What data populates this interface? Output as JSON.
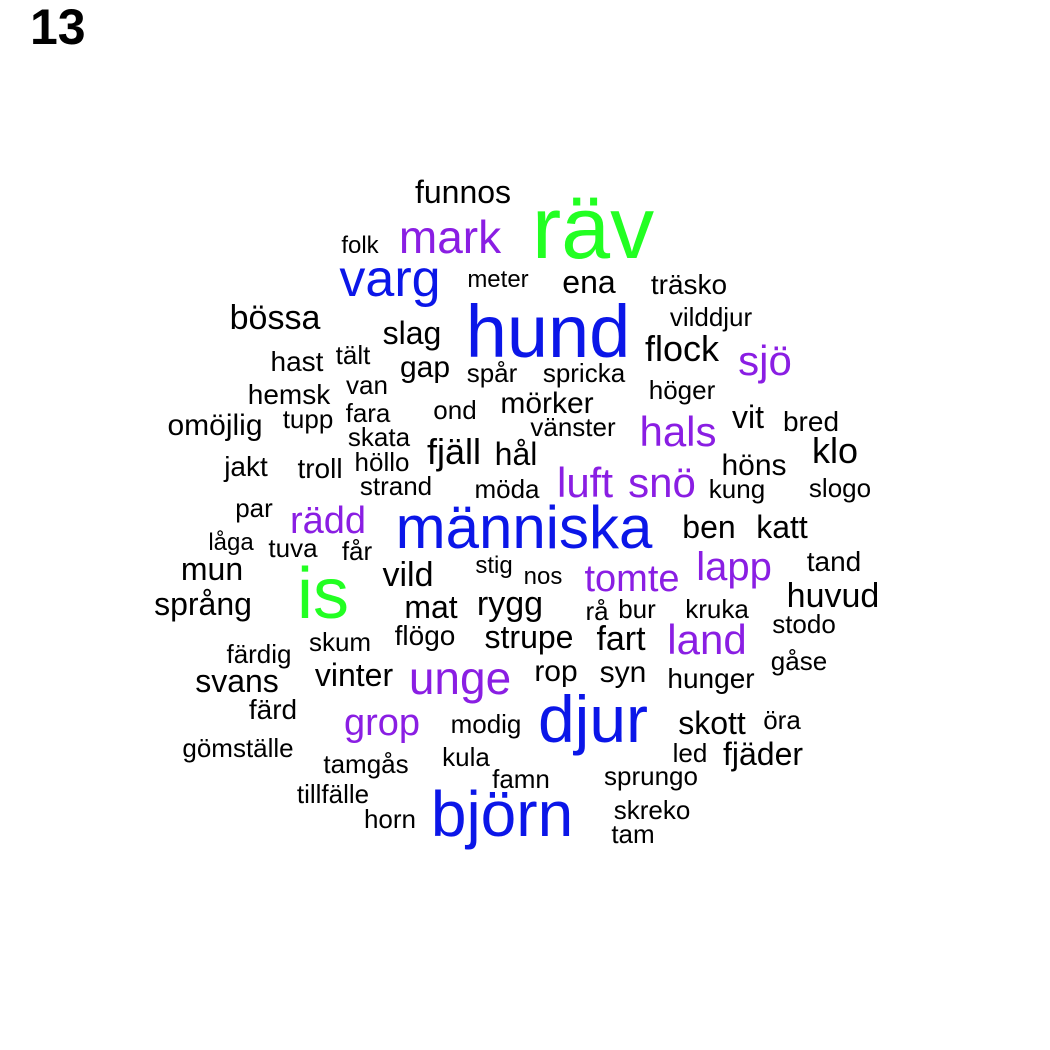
{
  "page_number": "13",
  "colors": {
    "green": "#22ff22",
    "blue": "#0b16e8",
    "purple": "#8a1ee3",
    "black": "#000000"
  },
  "words": [
    {
      "text": "räv",
      "tier": "green"
    },
    {
      "text": "is",
      "tier": "green"
    },
    {
      "text": "hund",
      "tier": "blue"
    },
    {
      "text": "människa",
      "tier": "blue"
    },
    {
      "text": "djur",
      "tier": "blue"
    },
    {
      "text": "björn",
      "tier": "blue"
    },
    {
      "text": "varg",
      "tier": "blue"
    },
    {
      "text": "mark",
      "tier": "purple"
    },
    {
      "text": "sjö",
      "tier": "purple"
    },
    {
      "text": "hals",
      "tier": "purple"
    },
    {
      "text": "luft",
      "tier": "purple"
    },
    {
      "text": "snö",
      "tier": "purple"
    },
    {
      "text": "rädd",
      "tier": "purple"
    },
    {
      "text": "tomte",
      "tier": "purple"
    },
    {
      "text": "lapp",
      "tier": "purple"
    },
    {
      "text": "land",
      "tier": "purple"
    },
    {
      "text": "unge",
      "tier": "purple"
    },
    {
      "text": "grop",
      "tier": "purple"
    },
    {
      "text": "funnos",
      "tier": "black"
    },
    {
      "text": "folk",
      "tier": "black"
    },
    {
      "text": "meter",
      "tier": "black"
    },
    {
      "text": "ena",
      "tier": "black"
    },
    {
      "text": "träsko",
      "tier": "black"
    },
    {
      "text": "bössa",
      "tier": "black"
    },
    {
      "text": "slag",
      "tier": "black"
    },
    {
      "text": "vilddjur",
      "tier": "black"
    },
    {
      "text": "flock",
      "tier": "black"
    },
    {
      "text": "hast",
      "tier": "black"
    },
    {
      "text": "tält",
      "tier": "black"
    },
    {
      "text": "gap",
      "tier": "black"
    },
    {
      "text": "spår",
      "tier": "black"
    },
    {
      "text": "spricka",
      "tier": "black"
    },
    {
      "text": "höger",
      "tier": "black"
    },
    {
      "text": "hemsk",
      "tier": "black"
    },
    {
      "text": "van",
      "tier": "black"
    },
    {
      "text": "mörker",
      "tier": "black"
    },
    {
      "text": "omöjlig",
      "tier": "black"
    },
    {
      "text": "tupp",
      "tier": "black"
    },
    {
      "text": "fara",
      "tier": "black"
    },
    {
      "text": "ond",
      "tier": "black"
    },
    {
      "text": "vänster",
      "tier": "black"
    },
    {
      "text": "vit",
      "tier": "black"
    },
    {
      "text": "bred",
      "tier": "black"
    },
    {
      "text": "skata",
      "tier": "black"
    },
    {
      "text": "fjäll",
      "tier": "black"
    },
    {
      "text": "hål",
      "tier": "black"
    },
    {
      "text": "klo",
      "tier": "black"
    },
    {
      "text": "jakt",
      "tier": "black"
    },
    {
      "text": "troll",
      "tier": "black"
    },
    {
      "text": "höllo",
      "tier": "black"
    },
    {
      "text": "höns",
      "tier": "black"
    },
    {
      "text": "strand",
      "tier": "black"
    },
    {
      "text": "möda",
      "tier": "black"
    },
    {
      "text": "kung",
      "tier": "black"
    },
    {
      "text": "slogo",
      "tier": "black"
    },
    {
      "text": "par",
      "tier": "black"
    },
    {
      "text": "ben",
      "tier": "black"
    },
    {
      "text": "katt",
      "tier": "black"
    },
    {
      "text": "låga",
      "tier": "black"
    },
    {
      "text": "tuva",
      "tier": "black"
    },
    {
      "text": "får",
      "tier": "black"
    },
    {
      "text": "stig",
      "tier": "black"
    },
    {
      "text": "nos",
      "tier": "black"
    },
    {
      "text": "tand",
      "tier": "black"
    },
    {
      "text": "mun",
      "tier": "black"
    },
    {
      "text": "vild",
      "tier": "black"
    },
    {
      "text": "huvud",
      "tier": "black"
    },
    {
      "text": "språng",
      "tier": "black"
    },
    {
      "text": "mat",
      "tier": "black"
    },
    {
      "text": "rygg",
      "tier": "black"
    },
    {
      "text": "rå",
      "tier": "black"
    },
    {
      "text": "bur",
      "tier": "black"
    },
    {
      "text": "kruka",
      "tier": "black"
    },
    {
      "text": "stodo",
      "tier": "black"
    },
    {
      "text": "färdig",
      "tier": "black"
    },
    {
      "text": "skum",
      "tier": "black"
    },
    {
      "text": "flögo",
      "tier": "black"
    },
    {
      "text": "strupe",
      "tier": "black"
    },
    {
      "text": "fart",
      "tier": "black"
    },
    {
      "text": "gåse",
      "tier": "black"
    },
    {
      "text": "svans",
      "tier": "black"
    },
    {
      "text": "vinter",
      "tier": "black"
    },
    {
      "text": "rop",
      "tier": "black"
    },
    {
      "text": "syn",
      "tier": "black"
    },
    {
      "text": "hunger",
      "tier": "black"
    },
    {
      "text": "färd",
      "tier": "black"
    },
    {
      "text": "modig",
      "tier": "black"
    },
    {
      "text": "skott",
      "tier": "black"
    },
    {
      "text": "öra",
      "tier": "black"
    },
    {
      "text": "gömställe",
      "tier": "black"
    },
    {
      "text": "tamgås",
      "tier": "black"
    },
    {
      "text": "kula",
      "tier": "black"
    },
    {
      "text": "led",
      "tier": "black"
    },
    {
      "text": "fjäder",
      "tier": "black"
    },
    {
      "text": "famn",
      "tier": "black"
    },
    {
      "text": "sprungo",
      "tier": "black"
    },
    {
      "text": "tillfälle",
      "tier": "black"
    },
    {
      "text": "horn",
      "tier": "black"
    },
    {
      "text": "skreko",
      "tier": "black"
    },
    {
      "text": "tam",
      "tier": "black"
    }
  ]
}
